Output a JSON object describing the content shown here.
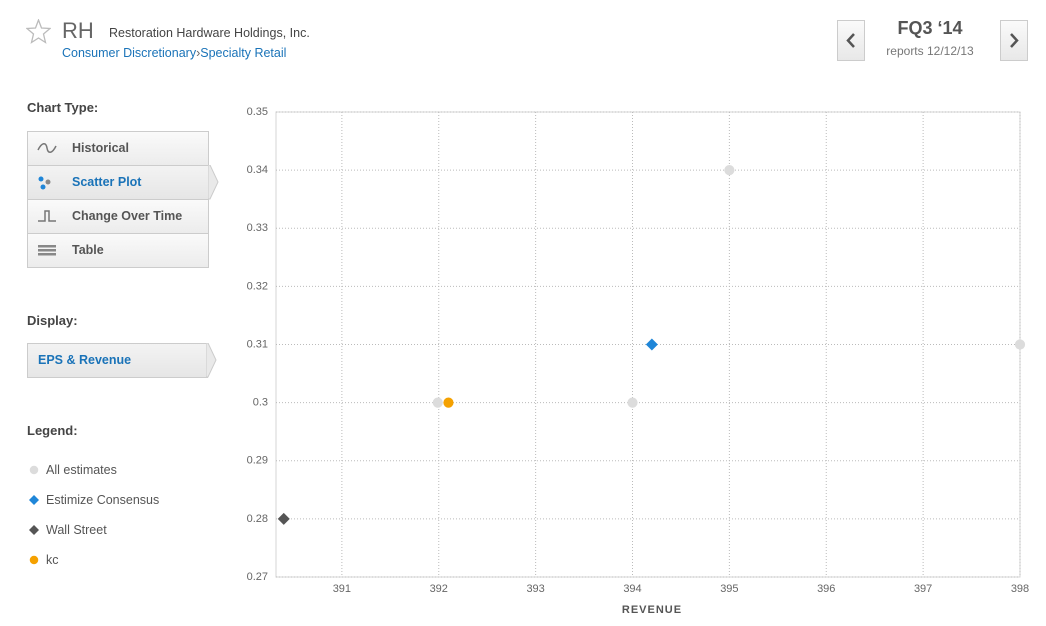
{
  "header": {
    "ticker": "RH",
    "company": "Restoration Hardware Holdings, Inc.",
    "sector": "Consumer Discretionary",
    "separator": "›",
    "industry": "Specialty Retail",
    "period": "FQ3 ‘14",
    "report_date": "reports 12/12/13"
  },
  "sidebar": {
    "chart_type_label": "Chart Type:",
    "chart_types": [
      "Historical",
      "Scatter Plot",
      "Change Over Time",
      "Table"
    ],
    "display_label": "Display:",
    "display_value": "EPS & Revenue",
    "legend_label": "Legend:"
  },
  "chart_data": {
    "type": "scatter",
    "x_label": "REVENUE",
    "xlim": [
      390.32,
      398
    ],
    "xticks": [
      391,
      392,
      393,
      394,
      395,
      396,
      397,
      398
    ],
    "ylim": [
      0.27,
      0.35
    ],
    "yticks": [
      0.27,
      0.28,
      0.29,
      0.3,
      0.31,
      0.32,
      0.33,
      0.34,
      0.35
    ],
    "grid": true,
    "series": [
      {
        "name": "All estimates",
        "color": "#dcdcdc",
        "marker": "circle",
        "x": [
          391.99,
          394.0,
          395.0,
          398.0
        ],
        "values": [
          0.3,
          0.3,
          0.34,
          0.31
        ]
      },
      {
        "name": "Estimize Consensus",
        "color": "#1f86d8",
        "marker": "diamond",
        "x": [
          394.2
        ],
        "values": [
          0.31
        ]
      },
      {
        "name": "Wall Street",
        "color": "#555555",
        "marker": "diamond",
        "x": [
          390.4
        ],
        "values": [
          0.28
        ]
      },
      {
        "name": "kc",
        "color": "#f5a100",
        "marker": "circle",
        "x": [
          392.1
        ],
        "values": [
          0.3
        ]
      }
    ]
  }
}
